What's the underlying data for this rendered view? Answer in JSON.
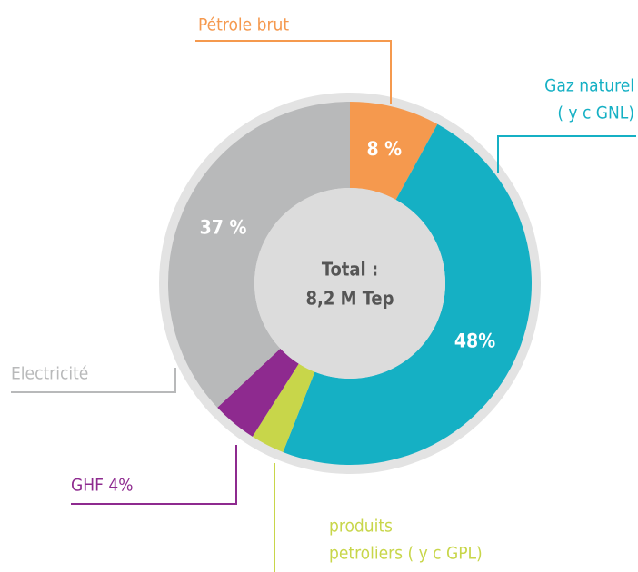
{
  "chart_data": {
    "type": "donut",
    "categories": [
      "Pétrole brut",
      [
        "Gaz naturel",
        "( y c GNL)"
      ],
      [
        "produits",
        "petroliers ( y c GPL)"
      ],
      "GHF 4%",
      "Electricité"
    ],
    "values": [
      8,
      48,
      3,
      4,
      37
    ],
    "value_labels": [
      "8 %",
      "48%",
      null,
      null,
      "37 %"
    ],
    "colors": [
      "#f5994e",
      "#15b0c4",
      "#c8d64a",
      "#8e2a8f",
      "#b8b9ba"
    ],
    "center_text": [
      "Total :",
      "8,2 M Tep"
    ]
  }
}
